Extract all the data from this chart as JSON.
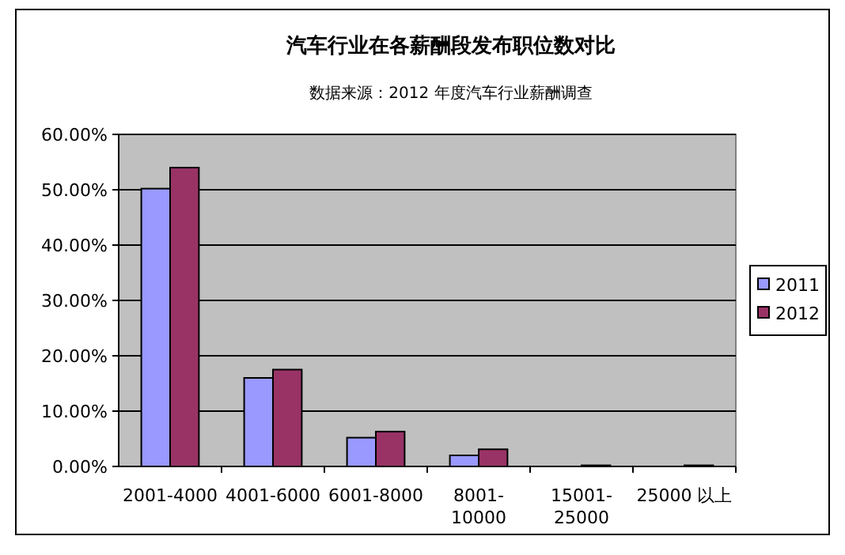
{
  "chart_data": {
    "type": "bar",
    "title": "汽车行业在各薪酬段发布职位数对比",
    "annotations": [
      "数据来源：2012 年度汽车行业薪酬调查"
    ],
    "categories": [
      "2001-4000",
      "4001-6000",
      "6001-8000",
      "8001-10000",
      "15001-25000",
      "25000 以上"
    ],
    "series": [
      {
        "name": "2011",
        "color": "#9999ff",
        "values": [
          50.2,
          16.0,
          5.2,
          2.0,
          null,
          null
        ]
      },
      {
        "name": "2012",
        "color": "#993366",
        "values": [
          54.0,
          17.5,
          6.3,
          3.1,
          0.2,
          0.2
        ]
      }
    ],
    "ylim": [
      0,
      60
    ],
    "yticks": [
      {
        "value": 0,
        "label": "0.00%"
      },
      {
        "value": 10,
        "label": "10.00%"
      },
      {
        "value": 20,
        "label": "20.00%"
      },
      {
        "value": 30,
        "label": "30.00%"
      },
      {
        "value": 40,
        "label": "40.00%"
      },
      {
        "value": 50,
        "label": "50.00%"
      },
      {
        "value": 60,
        "label": "60.00%"
      }
    ],
    "grid": "y",
    "legend": "right"
  }
}
